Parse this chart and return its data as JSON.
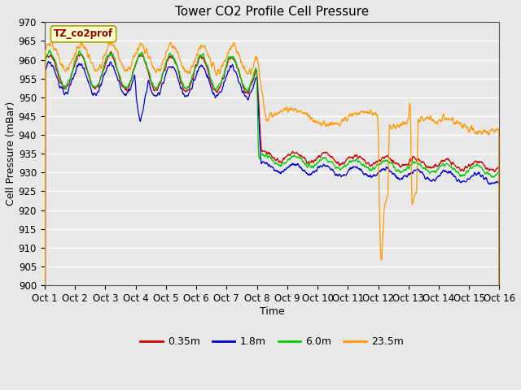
{
  "title": "Tower CO2 Profile Cell Pressure",
  "xlabel": "Time",
  "ylabel": "Cell Pressure (mBar)",
  "ylim": [
    900,
    970
  ],
  "yticks": [
    900,
    905,
    910,
    915,
    920,
    925,
    930,
    935,
    940,
    945,
    950,
    955,
    960,
    965,
    970
  ],
  "xtick_labels": [
    "Oct 1",
    "Oct 2",
    "Oct 3",
    "Oct 4",
    "Oct 5",
    "Oct 6",
    "Oct 7",
    "Oct 8",
    "Oct 9",
    "Oct 10",
    "Oct 11",
    "Oct 12",
    "Oct 13",
    "Oct 14",
    "Oct 15",
    "Oct 16"
  ],
  "legend_label": "TZ_co2prof",
  "line_labels": [
    "0.35m",
    "1.8m",
    "6.0m",
    "23.5m"
  ],
  "line_colors": [
    "#cc0000",
    "#0000cc",
    "#00cc00",
    "#ff9900"
  ],
  "fig_bg_color": "#e8e8e8",
  "plot_bg_color": "#e8e8e8",
  "grid_color": "#ffffff",
  "title_fontsize": 11,
  "axis_fontsize": 9,
  "tick_fontsize": 8.5,
  "legend_fontsize": 9
}
